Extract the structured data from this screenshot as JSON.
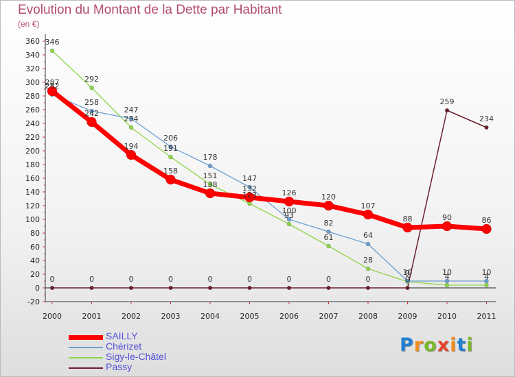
{
  "title": "Evolution du Montant de la Dette par Habitant",
  "subtitle": "(en €)",
  "brand": {
    "letters": [
      "P",
      "r",
      "o",
      "x",
      "i",
      "t",
      "i"
    ],
    "colors": [
      "#1f7fd1",
      "#f28c1e",
      "#79b829",
      "#e8412a",
      "#f28c1e",
      "#1f7fd1",
      "#79b829"
    ]
  },
  "chart_data": {
    "type": "line",
    "title": "Evolution du Montant de la Dette par Habitant",
    "ylabel": "(en €)",
    "xlabel": "",
    "x": [
      "2000",
      "2001",
      "2002",
      "2003",
      "2004",
      "2005",
      "2006",
      "2007",
      "2008",
      "2009",
      "2010",
      "2011"
    ],
    "ylim": [
      -20,
      360
    ],
    "yticks": [
      -20,
      0,
      20,
      40,
      60,
      80,
      100,
      120,
      140,
      160,
      180,
      200,
      220,
      240,
      260,
      280,
      300,
      320,
      340,
      360
    ],
    "grid": false,
    "legend_position": "bottom-left",
    "series": [
      {
        "name": "Passy",
        "color": "#6b1f2a",
        "width": 1.5,
        "marker": 2.8,
        "values": [
          0,
          0,
          0,
          0,
          0,
          0,
          0,
          0,
          0,
          0,
          259,
          234
        ],
        "labels": [
          "0",
          "0",
          "0",
          "0",
          "0",
          "0",
          "0",
          "0",
          "0",
          "0",
          "259",
          "234"
        ]
      },
      {
        "name": "Sigy-le-Châtel",
        "color": "#8fd44a",
        "width": 1.3,
        "marker": 3,
        "values": [
          346,
          292,
          234,
          191,
          151,
          123,
          93,
          61,
          28,
          9,
          4,
          4
        ],
        "labels": [
          "346",
          "292",
          "234",
          "191",
          "151",
          "123",
          "93",
          "61",
          "28",
          "9",
          "4",
          "4"
        ]
      },
      {
        "name": "Chérizet",
        "color": "#6b9fd0",
        "width": 1.3,
        "marker": 3,
        "values": [
          282,
          258,
          247,
          206,
          178,
          147,
          100,
          82,
          64,
          10,
          10,
          10
        ],
        "labels": [
          "282",
          "258",
          "247",
          "206",
          "178",
          "147",
          "100",
          "82",
          "64",
          "10",
          "10",
          "10"
        ]
      },
      {
        "name": "SAILLY",
        "color": "#ff0000",
        "width": 7,
        "marker": 7,
        "values": [
          287,
          242,
          194,
          158,
          138,
          132,
          126,
          120,
          107,
          88,
          90,
          86
        ],
        "labels": [
          "287",
          "242",
          "194",
          "158",
          "138",
          "132",
          "126",
          "120",
          "107",
          "88",
          "90",
          "86"
        ]
      }
    ],
    "legend": [
      {
        "name": "SAILLY",
        "color": "#ff0000",
        "width": 7
      },
      {
        "name": "Chérizet",
        "color": "#6b9fd0",
        "width": 1.5
      },
      {
        "name": "Sigy-le-Châtel",
        "color": "#8fd44a",
        "width": 1.5
      },
      {
        "name": "Passy",
        "color": "#6b1f2a",
        "width": 1.5
      }
    ]
  }
}
